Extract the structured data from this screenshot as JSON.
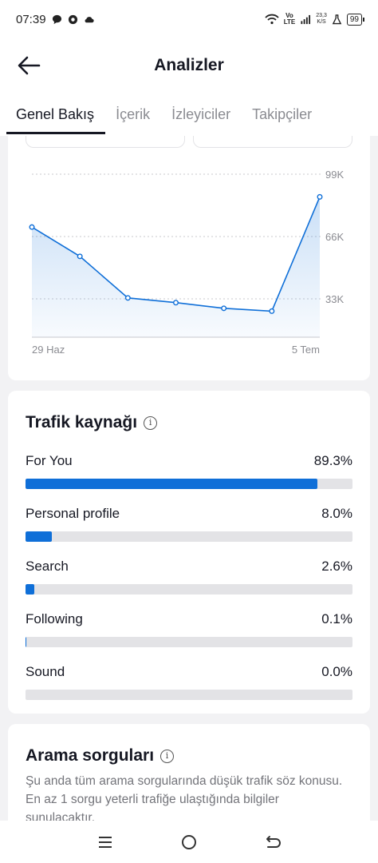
{
  "status_bar": {
    "time": "07:39",
    "network_label": "Vo\nLTE",
    "speed": "23,3\nK/S",
    "battery": "99"
  },
  "header": {
    "title": "Analizler",
    "back_icon": "arrow-left-icon"
  },
  "tabs": [
    {
      "label": "Genel Bakış",
      "active": true
    },
    {
      "label": "İçerik",
      "active": false
    },
    {
      "label": "İzleyiciler",
      "active": false
    },
    {
      "label": "Takipçiler",
      "active": false
    }
  ],
  "chart_data": {
    "type": "line",
    "x_labels": [
      "29 Haz",
      "",
      "",
      "",
      "",
      "",
      "5 Tem"
    ],
    "y_ticks": [
      "99K",
      "66K",
      "33K"
    ],
    "y_tick_values": [
      99000,
      66000,
      33000
    ],
    "ylim": [
      0,
      99000
    ],
    "series": [
      {
        "values": [
          71000,
          55500,
          33500,
          31000,
          28000,
          26500,
          87000
        ]
      }
    ],
    "grid": "dashed-horizontal",
    "color": "#0f6fd8"
  },
  "traffic": {
    "title": "Trafik kaynağı",
    "items": [
      {
        "label": "For You",
        "value": "89.3%",
        "fraction": 0.893
      },
      {
        "label": "Personal profile",
        "value": "8.0%",
        "fraction": 0.08
      },
      {
        "label": "Search",
        "value": "2.6%",
        "fraction": 0.026
      },
      {
        "label": "Following",
        "value": "0.1%",
        "fraction": 0.001
      },
      {
        "label": "Sound",
        "value": "0.0%",
        "fraction": 0.0
      }
    ]
  },
  "search": {
    "title": "Arama sorguları",
    "description": "Şu anda tüm arama sorgularında düşük trafik söz konusu. En az 1 sorgu yeterli trafiğe ulaştığında bilgiler sunulacaktır."
  },
  "colors": {
    "accent": "#0f6fd8",
    "track": "#e3e3e6"
  }
}
